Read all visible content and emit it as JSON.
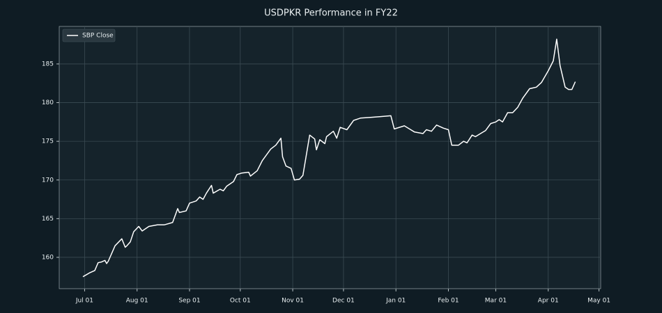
{
  "chart_data": {
    "type": "line",
    "title": "USDPKR Performance in FY22",
    "x": [
      "Jun 30",
      "Jul 04",
      "Jul 07",
      "Jul 09",
      "Jul 11",
      "Jul 13",
      "Jul 14",
      "Jul 15",
      "Jul 19",
      "Jul 23",
      "Jul 25",
      "Jul 26",
      "Jul 28",
      "Jul 30",
      "Aug 02",
      "Aug 04",
      "Aug 08",
      "Aug 13",
      "Aug 17",
      "Aug 22",
      "Aug 25",
      "Aug 26",
      "Aug 30",
      "Sep 01",
      "Sep 05",
      "Sep 07",
      "Sep 09",
      "Sep 11",
      "Sep 14",
      "Sep 15",
      "Sep 19",
      "Sep 21",
      "Sep 23",
      "Sep 27",
      "Sep 29",
      "Oct 02",
      "Oct 06",
      "Oct 07",
      "Oct 11",
      "Oct 14",
      "Oct 19",
      "Oct 22",
      "Oct 25",
      "Oct 26",
      "Oct 28",
      "Oct 31",
      "Nov 02",
      "Nov 05",
      "Nov 07",
      "Nov 11",
      "Nov 14",
      "Nov 15",
      "Nov 17",
      "Nov 20",
      "Nov 21",
      "Nov 25",
      "Nov 27",
      "Nov 29",
      "Dec 03",
      "Dec 07",
      "Dec 11",
      "Dec 17",
      "Dec 23",
      "Dec 29",
      "Dec 31",
      "Jan 03",
      "Jan 06",
      "Jan 09",
      "Jan 12",
      "Jan 17",
      "Jan 19",
      "Jan 22",
      "Jan 25",
      "Jan 29",
      "Feb 01",
      "Feb 03",
      "Feb 07",
      "Feb 10",
      "Feb 12",
      "Feb 15",
      "Feb 17",
      "Feb 20",
      "Feb 23",
      "Feb 26",
      "Mar 01",
      "Mar 03",
      "Mar 05",
      "Mar 08",
      "Mar 11",
      "Mar 14",
      "Mar 17",
      "Mar 21",
      "Mar 25",
      "Mar 28",
      "Apr 01",
      "Apr 04",
      "Apr 06",
      "Apr 08",
      "Apr 11",
      "Apr 13",
      "Apr 15",
      "Apr 17"
    ],
    "series": [
      {
        "name": "SBP Close",
        "color": "#ffffff",
        "values": [
          157.5,
          158.0,
          158.3,
          159.3,
          159.4,
          159.6,
          159.2,
          159.5,
          161.5,
          162.4,
          161.3,
          161.5,
          162.0,
          163.3,
          164.0,
          163.4,
          164.0,
          164.2,
          164.2,
          164.5,
          166.3,
          165.8,
          166.0,
          167.0,
          167.3,
          167.8,
          167.5,
          168.3,
          169.3,
          168.3,
          168.8,
          168.6,
          169.2,
          169.8,
          170.7,
          170.9,
          171.0,
          170.5,
          171.2,
          172.5,
          174.0,
          174.5,
          175.4,
          173.0,
          171.8,
          171.5,
          170.0,
          170.1,
          170.6,
          175.8,
          175.3,
          173.9,
          175.2,
          174.7,
          175.6,
          176.3,
          175.4,
          176.8,
          176.5,
          177.7,
          178.0,
          178.1,
          178.2,
          178.3,
          176.6,
          176.8,
          177.0,
          176.6,
          176.2,
          176.0,
          176.5,
          176.3,
          177.1,
          176.7,
          176.5,
          174.5,
          174.5,
          175.0,
          174.8,
          175.8,
          175.6,
          176.0,
          176.4,
          177.3,
          177.5,
          177.8,
          177.5,
          178.7,
          178.7,
          179.4,
          180.6,
          181.8,
          182.0,
          182.6,
          184.1,
          185.4,
          188.2,
          184.8,
          182.0,
          181.7,
          181.7,
          182.7
        ]
      }
    ],
    "xlim": [
      "Jun 16",
      "May 02"
    ],
    "xticks": [
      "Jul 01",
      "Aug 01",
      "Sep 01",
      "Oct 01",
      "Nov 01",
      "Dec 01",
      "Jan 01",
      "Feb 01",
      "Mar 01",
      "Apr 01",
      "May 01"
    ],
    "ylim": [
      155.95,
      189.85
    ],
    "yticks": [
      160,
      165,
      170,
      175,
      180,
      185
    ],
    "grid": true,
    "legend": "upper left"
  }
}
